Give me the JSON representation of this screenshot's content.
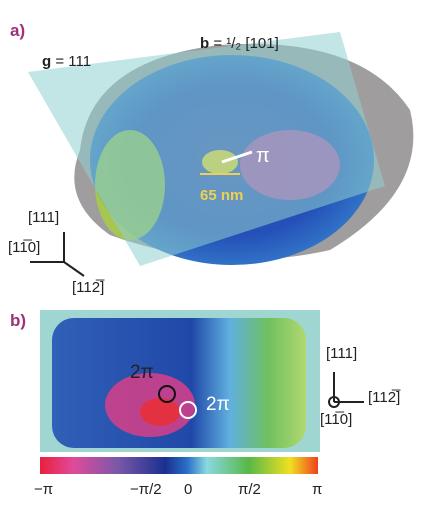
{
  "panel_a": {
    "label": "a)",
    "g_symbol": "g",
    "g_value": "= 111",
    "b_symbol": "b",
    "b_value": "= ¹/₂ [101]",
    "phase": "π",
    "scale": "65 nm",
    "axes": {
      "up": "[111]",
      "left": "[11̅0]",
      "diag": "[112̅]"
    }
  },
  "panel_b": {
    "label": "b)",
    "loop_black": "2π",
    "loop_white": "2π",
    "axes": {
      "up": "[111]",
      "right": "[112̅]",
      "out": "[11̅0]"
    }
  },
  "colorbar": {
    "labels": [
      "−π",
      "−π/2",
      "0",
      "π/2",
      "π"
    ]
  }
}
